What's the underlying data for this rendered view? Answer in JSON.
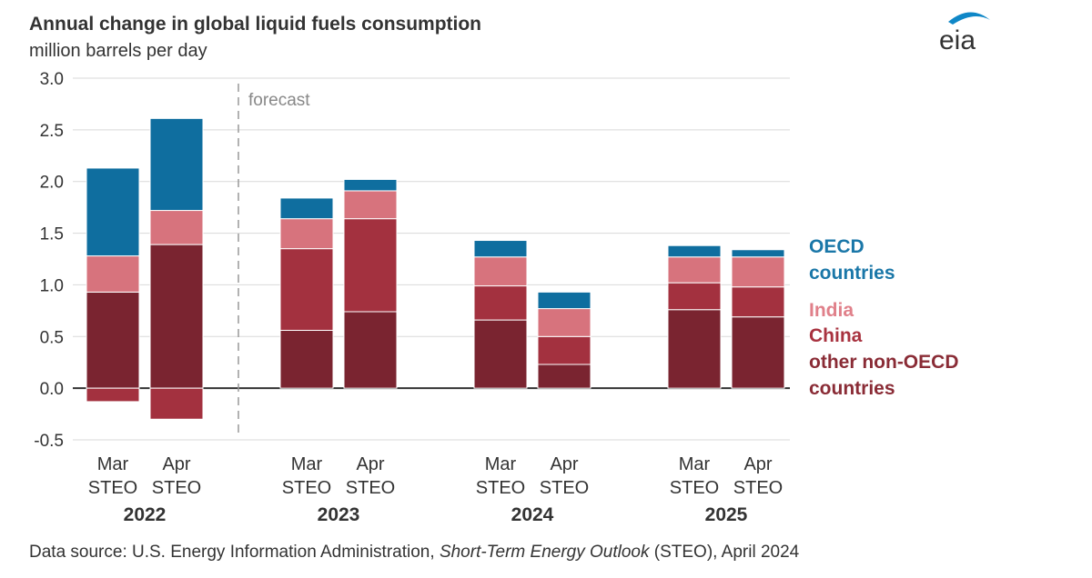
{
  "chart_data": {
    "type": "bar",
    "stacked": true,
    "title": "Annual change in global liquid fuels consumption",
    "subtitle": "million barrels per day",
    "ylim": [
      -0.5,
      3.0
    ],
    "yticks": [
      "3.0",
      "2.5",
      "2.0",
      "1.5",
      "1.0",
      "0.5",
      "0.0",
      "-0.5"
    ],
    "ytick_values": [
      3.0,
      2.5,
      2.0,
      1.5,
      1.0,
      0.5,
      0.0,
      -0.5
    ],
    "grid": true,
    "forecast_label": "forecast",
    "groups": [
      "2022",
      "2023",
      "2024",
      "2025"
    ],
    "categories": [
      {
        "top": "Mar",
        "bottom": "STEO",
        "group": "2022"
      },
      {
        "top": "Apr",
        "bottom": "STEO",
        "group": "2022"
      },
      {
        "top": "Mar",
        "bottom": "STEO",
        "group": "2023"
      },
      {
        "top": "Apr",
        "bottom": "STEO",
        "group": "2023"
      },
      {
        "top": "Mar",
        "bottom": "STEO",
        "group": "2024"
      },
      {
        "top": "Apr",
        "bottom": "STEO",
        "group": "2024"
      },
      {
        "top": "Mar",
        "bottom": "STEO",
        "group": "2025"
      },
      {
        "top": "Apr",
        "bottom": "STEO",
        "group": "2025"
      }
    ],
    "series": [
      {
        "name": "other non-OECD countries",
        "color": "#7a2430",
        "values": [
          0.93,
          1.39,
          0.56,
          0.74,
          0.66,
          0.23,
          0.76,
          0.69
        ]
      },
      {
        "name": "China",
        "color": "#a3313f",
        "values": [
          -0.13,
          -0.3,
          0.79,
          0.9,
          0.33,
          0.27,
          0.26,
          0.29
        ]
      },
      {
        "name": "India",
        "color": "#d7737d",
        "values": [
          0.35,
          0.33,
          0.29,
          0.27,
          0.28,
          0.27,
          0.25,
          0.29
        ]
      },
      {
        "name": "OECD countries",
        "color": "#0f6e9f",
        "values": [
          0.85,
          0.89,
          0.2,
          0.11,
          0.16,
          0.16,
          0.11,
          0.07
        ]
      }
    ],
    "legend": {
      "placement": "right",
      "items": [
        {
          "lines": [
            "OECD",
            "countries"
          ],
          "color": "#1a77a8"
        },
        {
          "lines": [
            "India"
          ],
          "color": "#e0808a"
        },
        {
          "lines": [
            "China"
          ],
          "color": "#a8323f"
        },
        {
          "lines": [
            "other non-OECD",
            "countries"
          ],
          "color": "#8a2c36"
        }
      ]
    }
  },
  "source": {
    "prefix": "Data source: U.S. Energy Information Administration, ",
    "italic": "Short-Term Energy Outlook",
    "suffix": " (STEO), April 2024"
  },
  "logo": {
    "text": "eia",
    "accent_color": "#0f87c7"
  }
}
